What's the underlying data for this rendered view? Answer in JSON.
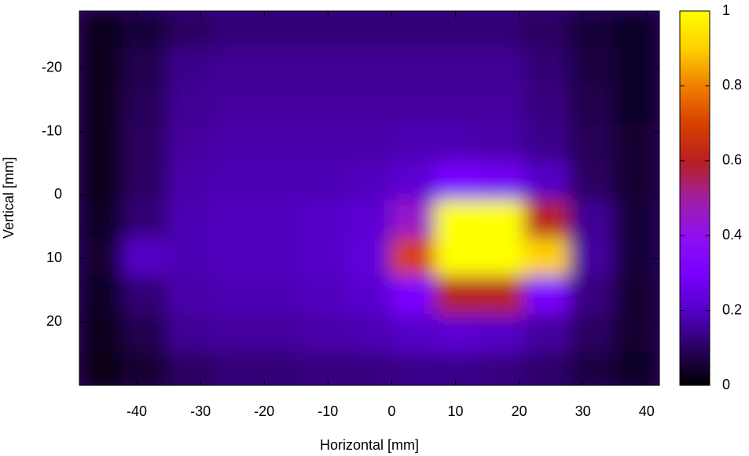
{
  "chart_data": {
    "type": "heatmap",
    "xlabel": "Horizontal [mm]",
    "ylabel": "Vertical [mm]",
    "xlim": [
      -49,
      42
    ],
    "ylim": [
      -29,
      30
    ],
    "xticks": [
      -40,
      -30,
      -20,
      -10,
      0,
      10,
      20,
      30,
      40
    ],
    "yticks": [
      -20,
      -10,
      0,
      10,
      20
    ],
    "x": [
      -45.5,
      -38.5,
      -31.5,
      -24.5,
      -17.5,
      -10.5,
      -3.5,
      3.5,
      10.5,
      17.5,
      24.5,
      31.5,
      38.5
    ],
    "y": [
      -26,
      -20,
      -14,
      -8,
      -2,
      4,
      10,
      16,
      22,
      28
    ],
    "z": [
      [
        0.03,
        0.06,
        0.1,
        0.12,
        0.12,
        0.12,
        0.12,
        0.12,
        0.12,
        0.12,
        0.1,
        0.06,
        0.04
      ],
      [
        0.03,
        0.08,
        0.14,
        0.15,
        0.15,
        0.15,
        0.15,
        0.15,
        0.15,
        0.15,
        0.12,
        0.07,
        0.04
      ],
      [
        0.03,
        0.09,
        0.15,
        0.16,
        0.16,
        0.16,
        0.16,
        0.16,
        0.16,
        0.16,
        0.13,
        0.08,
        0.04
      ],
      [
        0.03,
        0.1,
        0.16,
        0.17,
        0.17,
        0.17,
        0.17,
        0.18,
        0.18,
        0.17,
        0.14,
        0.09,
        0.05
      ],
      [
        0.03,
        0.1,
        0.17,
        0.18,
        0.18,
        0.18,
        0.19,
        0.22,
        0.3,
        0.28,
        0.2,
        0.1,
        0.05
      ],
      [
        0.04,
        0.12,
        0.18,
        0.19,
        0.19,
        0.2,
        0.22,
        0.45,
        1,
        1,
        0.6,
        0.15,
        0.06
      ],
      [
        0.05,
        0.2,
        0.18,
        0.19,
        0.19,
        0.2,
        0.23,
        0.7,
        1,
        1,
        0.9,
        0.16,
        0.06
      ],
      [
        0.04,
        0.12,
        0.17,
        0.18,
        0.18,
        0.19,
        0.21,
        0.3,
        0.6,
        0.6,
        0.3,
        0.13,
        0.05
      ],
      [
        0.03,
        0.08,
        0.15,
        0.16,
        0.16,
        0.17,
        0.18,
        0.2,
        0.22,
        0.2,
        0.16,
        0.1,
        0.05
      ],
      [
        0.02,
        0.05,
        0.1,
        0.12,
        0.12,
        0.13,
        0.13,
        0.14,
        0.14,
        0.13,
        0.11,
        0.07,
        0.04
      ]
    ],
    "zlim": [
      0,
      1
    ],
    "zticks": [
      0,
      0.2,
      0.4,
      0.6,
      0.8,
      1
    ],
    "colormap": [
      "#000000",
      "#2a0060",
      "#5500c8",
      "#7a00ff",
      "#9010f0",
      "#a020a0",
      "#b82020",
      "#d84000",
      "#f08000",
      "#ffd000",
      "#ffff00"
    ]
  }
}
